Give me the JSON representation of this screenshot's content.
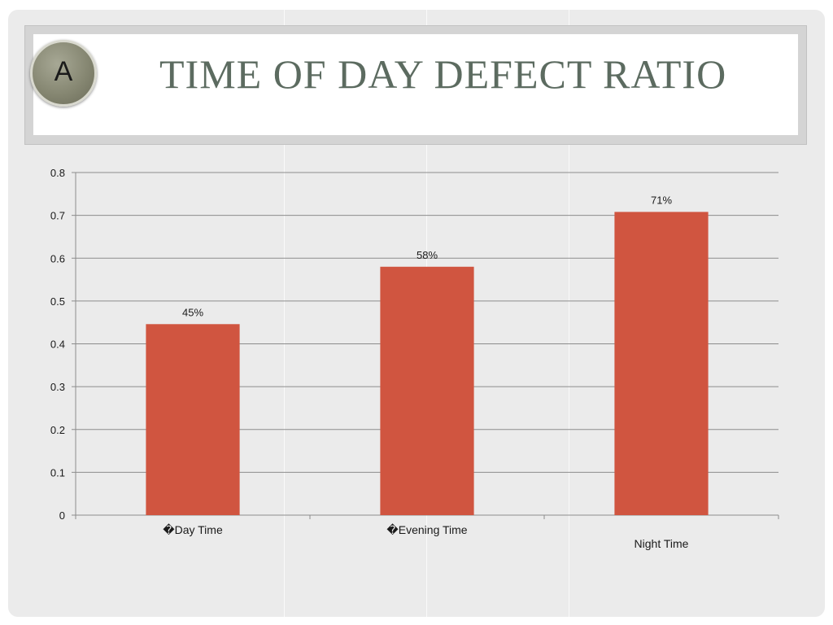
{
  "slide": {
    "badge_letter": "A",
    "title": "TIME OF DAY DEFECT RATIO"
  },
  "chart_data": {
    "type": "bar",
    "categories": [
      "�Day Time",
      "�Evening Time",
      "Night Time"
    ],
    "values": [
      0.446,
      0.58,
      0.708
    ],
    "data_labels": [
      "45%",
      "58%",
      "71%"
    ],
    "ylim": [
      0,
      0.8
    ],
    "yticks": [
      "0",
      "0.1",
      "0.2",
      "0.3",
      "0.4",
      "0.5",
      "0.6",
      "0.7",
      "0.8"
    ],
    "grid": true,
    "legend": "none",
    "bar_color": "#d05540"
  },
  "colors": {
    "background": "#ebebeb",
    "title": "#5c6b60",
    "gridline": "#8c8c8c"
  }
}
